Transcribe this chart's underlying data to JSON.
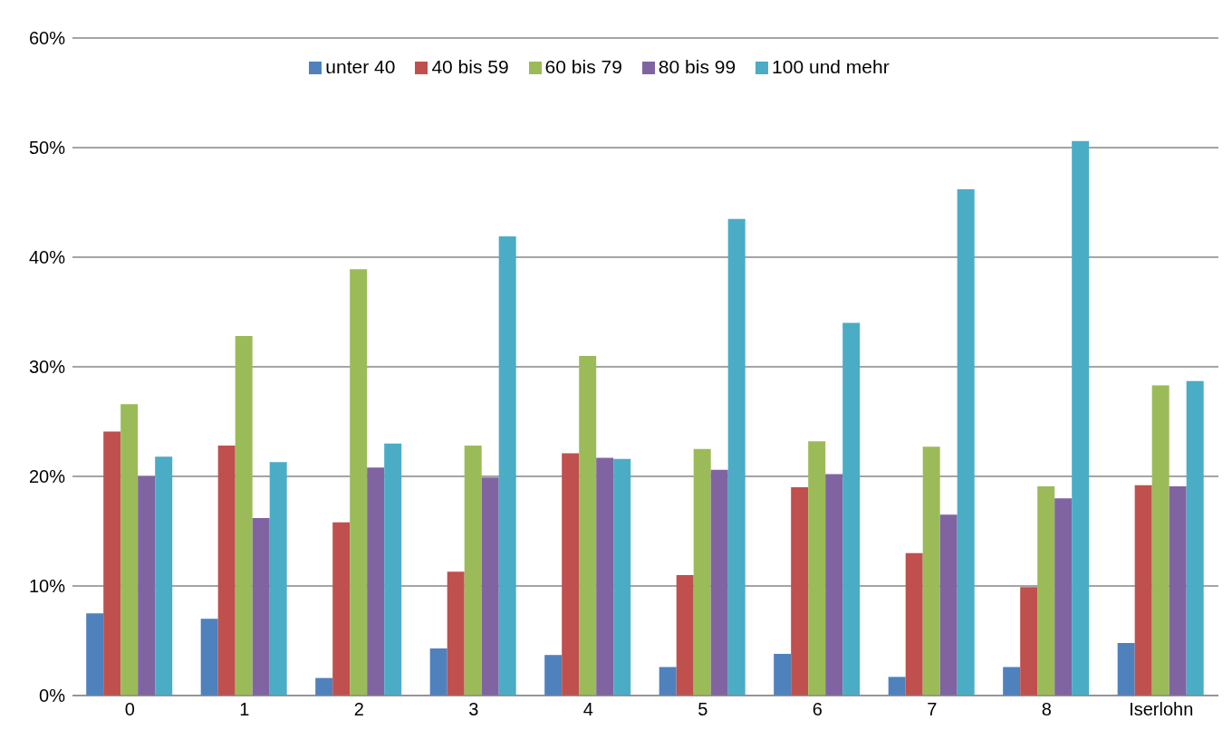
{
  "chart_data": {
    "type": "bar",
    "categories": [
      "0",
      "1",
      "2",
      "3",
      "4",
      "5",
      "6",
      "7",
      "8",
      "Iserlohn"
    ],
    "series": [
      {
        "name": "unter 40",
        "color": "#4f81bd",
        "values": [
          7.5,
          7.0,
          1.6,
          4.3,
          3.7,
          2.6,
          3.8,
          1.7,
          2.6,
          4.8
        ]
      },
      {
        "name": "40 bis 59",
        "color": "#c0504d",
        "values": [
          24.1,
          22.8,
          15.8,
          11.3,
          22.1,
          11.0,
          19.0,
          13.0,
          9.9,
          19.2
        ]
      },
      {
        "name": "60 bis 79",
        "color": "#9bbb59",
        "values": [
          26.6,
          32.8,
          38.9,
          22.8,
          31.0,
          22.5,
          23.2,
          22.7,
          19.1,
          28.3
        ]
      },
      {
        "name": "80 bis 99",
        "color": "#8064a2",
        "values": [
          20.0,
          16.2,
          20.8,
          19.9,
          21.7,
          20.6,
          20.2,
          16.5,
          18.0,
          19.1
        ]
      },
      {
        "name": "100 und mehr",
        "color": "#4bacc6",
        "values": [
          21.8,
          21.3,
          23.0,
          41.9,
          21.6,
          43.5,
          34.0,
          46.2,
          50.6,
          28.7
        ]
      }
    ],
    "ylim": [
      0,
      60
    ],
    "yticks": [
      {
        "value": 0,
        "label": "0%"
      },
      {
        "value": 10,
        "label": "10%"
      },
      {
        "value": 20,
        "label": "20%"
      },
      {
        "value": 30,
        "label": "30%"
      },
      {
        "value": 40,
        "label": "40%"
      },
      {
        "value": 50,
        "label": "50%"
      },
      {
        "value": 60,
        "label": "60%"
      }
    ],
    "grid": "y",
    "legend": "top"
  }
}
